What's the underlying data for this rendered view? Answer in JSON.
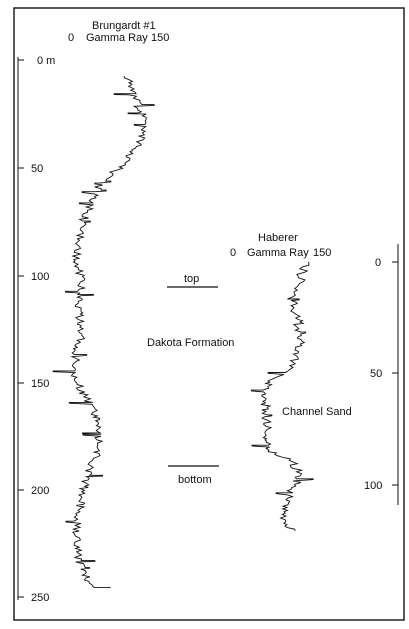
{
  "well_1": {
    "name": "Brungardt #1",
    "scale_min": "0",
    "scale_label": "Gamma Ray",
    "scale_max": "150",
    "depth_ticks": [
      "0 m",
      "50",
      "100",
      "150",
      "200",
      "250"
    ]
  },
  "well_2": {
    "name": "Haberer",
    "scale_min": "0",
    "scale_label": "Gamma Ray",
    "scale_max": "150",
    "depth_ticks": [
      "0",
      "50",
      "100"
    ]
  },
  "annotations": {
    "top": "top",
    "formation": "Dakota Formation",
    "bottom": "bottom",
    "channel": "Channel Sand"
  },
  "colors": {
    "ink": "#111111",
    "frame": "#222222",
    "background": "#ffffff"
  }
}
